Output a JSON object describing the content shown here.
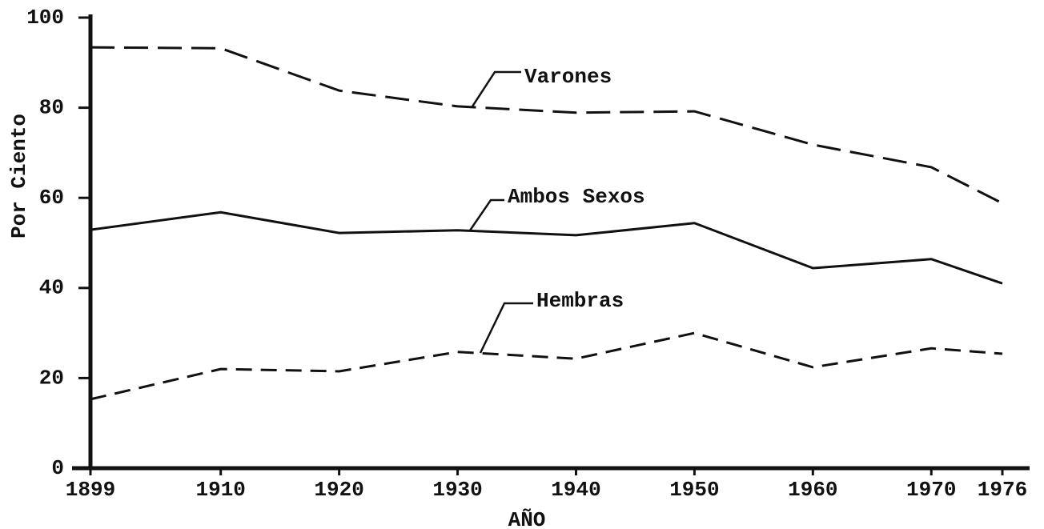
{
  "chart_data": {
    "type": "line",
    "xlabel": "AÑO",
    "ylabel": "Por Ciento",
    "x": [
      1899,
      1910,
      1920,
      1930,
      1940,
      1950,
      1960,
      1970,
      1976
    ],
    "xlim": [
      1899,
      1976
    ],
    "xticks": [
      1899,
      1910,
      1920,
      1930,
      1940,
      1950,
      1960,
      1970,
      1976
    ],
    "ylim": [
      0,
      100
    ],
    "yticks": [
      0,
      20,
      40,
      60,
      80,
      100
    ],
    "series": [
      {
        "name": "Varones",
        "color": "#111111",
        "linestyle": "long-dash",
        "values": [
          93.4,
          93.2,
          83.8,
          80.3,
          78.9,
          79.2,
          71.8,
          66.8,
          58.8
        ]
      },
      {
        "name": "Ambos Sexos",
        "color": "#111111",
        "linestyle": "solid",
        "values": [
          52.9,
          56.8,
          52.2,
          52.8,
          51.7,
          54.4,
          44.4,
          46.4,
          41.0
        ]
      },
      {
        "name": "Hembras",
        "color": "#111111",
        "linestyle": "dash",
        "values": [
          15.3,
          22.0,
          21.5,
          25.8,
          24.3,
          30.0,
          22.4,
          26.6,
          25.4
        ]
      }
    ]
  }
}
